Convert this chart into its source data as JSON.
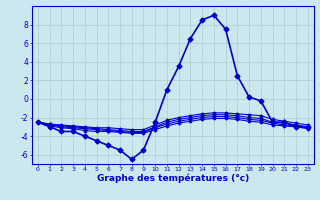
{
  "hours": [
    0,
    1,
    2,
    3,
    4,
    5,
    6,
    7,
    8,
    9,
    10,
    11,
    12,
    13,
    14,
    15,
    16,
    17,
    18,
    19,
    20,
    21,
    22,
    23
  ],
  "line_main": [
    -2.5,
    -3.0,
    -3.5,
    -3.5,
    -4.0,
    -4.5,
    -5.0,
    -5.5,
    -6.5,
    -5.5,
    -2.5,
    1.0,
    3.5,
    6.5,
    8.5,
    9.0,
    7.5,
    2.5,
    0.2,
    -0.2,
    -2.5,
    -2.5,
    -3.0,
    -3.0
  ],
  "line2": [
    -2.5,
    -2.7,
    -2.8,
    -2.9,
    -3.0,
    -3.1,
    -3.1,
    -3.2,
    -3.3,
    -3.3,
    -2.8,
    -2.3,
    -2.0,
    -1.8,
    -1.6,
    -1.5,
    -1.5,
    -1.6,
    -1.7,
    -1.8,
    -2.2,
    -2.4,
    -2.6,
    -2.8
  ],
  "line3": [
    -2.5,
    -2.7,
    -2.9,
    -3.0,
    -3.1,
    -3.2,
    -3.3,
    -3.4,
    -3.5,
    -3.5,
    -3.0,
    -2.5,
    -2.2,
    -2.0,
    -1.8,
    -1.7,
    -1.7,
    -1.8,
    -2.0,
    -2.1,
    -2.5,
    -2.6,
    -2.8,
    -3.0
  ],
  "line4": [
    -2.5,
    -2.8,
    -3.0,
    -3.1,
    -3.2,
    -3.3,
    -3.4,
    -3.5,
    -3.6,
    -3.6,
    -3.1,
    -2.7,
    -2.4,
    -2.2,
    -2.0,
    -1.9,
    -1.9,
    -2.0,
    -2.2,
    -2.3,
    -2.6,
    -2.8,
    -2.9,
    -3.1
  ],
  "line5": [
    -2.5,
    -2.9,
    -3.1,
    -3.2,
    -3.4,
    -3.5,
    -3.5,
    -3.6,
    -3.7,
    -3.7,
    -3.3,
    -2.9,
    -2.6,
    -2.4,
    -2.2,
    -2.1,
    -2.1,
    -2.2,
    -2.4,
    -2.5,
    -2.8,
    -2.9,
    -3.0,
    -3.2
  ],
  "ylim": [
    -7,
    10
  ],
  "yticks": [
    -6,
    -4,
    -2,
    0,
    2,
    4,
    6,
    8
  ],
  "xticks": [
    0,
    1,
    2,
    3,
    4,
    5,
    6,
    7,
    8,
    9,
    10,
    11,
    12,
    13,
    14,
    15,
    16,
    17,
    18,
    19,
    20,
    21,
    22,
    23
  ],
  "xlabel": "Graphe des températures (°c)",
  "line_color": "#0000cc",
  "bg_color": "#cce8ee",
  "grid_color": "#aacccc"
}
